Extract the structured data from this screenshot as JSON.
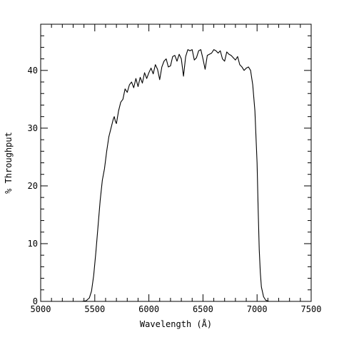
{
  "chart_data": {
    "type": "line",
    "title": "",
    "xlabel": "Wavelength (Å)",
    "ylabel": "% Throughput",
    "xlim": [
      5000,
      7500
    ],
    "ylim": [
      0,
      48
    ],
    "x_ticks": [
      5000,
      5500,
      6000,
      6500,
      7000,
      7500
    ],
    "y_ticks": [
      0,
      10,
      20,
      30,
      40
    ],
    "x_tick_labels": [
      "5000",
      "5500",
      "6000",
      "6500",
      "7000",
      "7500"
    ],
    "y_tick_labels": [
      "0",
      "10",
      "20",
      "30",
      "40"
    ],
    "x_minor_step": 100,
    "y_minor_step": 2,
    "grid": false,
    "legend": "none",
    "series": [
      {
        "color": "#000000",
        "points": [
          [
            5000,
            0
          ],
          [
            5380,
            0
          ],
          [
            5420,
            0.1
          ],
          [
            5450,
            0.6
          ],
          [
            5470,
            1.8
          ],
          [
            5490,
            4.5
          ],
          [
            5510,
            8.5
          ],
          [
            5530,
            13.0
          ],
          [
            5550,
            17.5
          ],
          [
            5570,
            21.0
          ],
          [
            5590,
            23.0
          ],
          [
            5610,
            26.0
          ],
          [
            5630,
            28.5
          ],
          [
            5650,
            30.0
          ],
          [
            5670,
            31.5
          ],
          [
            5680,
            32.0
          ],
          [
            5690,
            31.2
          ],
          [
            5700,
            30.8
          ],
          [
            5720,
            33.0
          ],
          [
            5740,
            34.5
          ],
          [
            5760,
            35.0
          ],
          [
            5780,
            36.8
          ],
          [
            5800,
            36.2
          ],
          [
            5820,
            37.5
          ],
          [
            5840,
            38.0
          ],
          [
            5860,
            37.0
          ],
          [
            5880,
            38.6
          ],
          [
            5900,
            37.2
          ],
          [
            5920,
            38.8
          ],
          [
            5940,
            37.8
          ],
          [
            5960,
            39.6
          ],
          [
            5980,
            38.6
          ],
          [
            6000,
            39.6
          ],
          [
            6020,
            40.4
          ],
          [
            6040,
            39.4
          ],
          [
            6060,
            41.0
          ],
          [
            6080,
            40.2
          ],
          [
            6100,
            38.4
          ],
          [
            6120,
            40.6
          ],
          [
            6140,
            41.6
          ],
          [
            6160,
            42.0
          ],
          [
            6180,
            40.6
          ],
          [
            6200,
            40.8
          ],
          [
            6220,
            42.4
          ],
          [
            6240,
            42.6
          ],
          [
            6260,
            41.6
          ],
          [
            6280,
            42.8
          ],
          [
            6300,
            42.0
          ],
          [
            6320,
            39.0
          ],
          [
            6340,
            42.4
          ],
          [
            6360,
            43.6
          ],
          [
            6380,
            43.4
          ],
          [
            6400,
            43.6
          ],
          [
            6420,
            41.8
          ],
          [
            6440,
            42.2
          ],
          [
            6460,
            43.4
          ],
          [
            6480,
            43.6
          ],
          [
            6500,
            42.0
          ],
          [
            6520,
            40.2
          ],
          [
            6540,
            42.6
          ],
          [
            6560,
            42.8
          ],
          [
            6580,
            43.0
          ],
          [
            6600,
            43.6
          ],
          [
            6620,
            43.4
          ],
          [
            6640,
            43.0
          ],
          [
            6660,
            43.4
          ],
          [
            6680,
            42.0
          ],
          [
            6700,
            41.6
          ],
          [
            6720,
            43.2
          ],
          [
            6740,
            42.8
          ],
          [
            6760,
            42.6
          ],
          [
            6780,
            42.2
          ],
          [
            6800,
            41.8
          ],
          [
            6820,
            42.4
          ],
          [
            6840,
            41.0
          ],
          [
            6860,
            40.6
          ],
          [
            6880,
            40.0
          ],
          [
            6900,
            40.4
          ],
          [
            6920,
            40.6
          ],
          [
            6940,
            40.0
          ],
          [
            6960,
            37.5
          ],
          [
            6980,
            33.0
          ],
          [
            7000,
            24.0
          ],
          [
            7010,
            16.0
          ],
          [
            7020,
            9.0
          ],
          [
            7030,
            5.0
          ],
          [
            7040,
            2.5
          ],
          [
            7060,
            0.8
          ],
          [
            7080,
            0.2
          ],
          [
            7110,
            0
          ],
          [
            7500,
            0
          ]
        ]
      }
    ]
  }
}
